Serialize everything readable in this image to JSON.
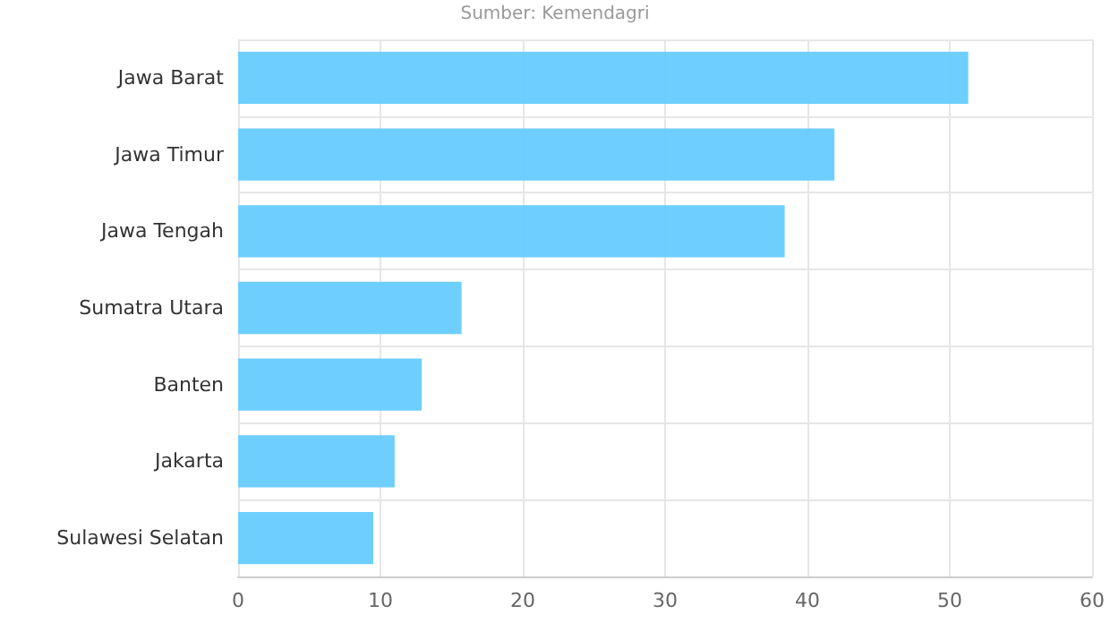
{
  "chart_data": {
    "type": "bar",
    "orientation": "horizontal",
    "annotations": [
      "Sumber: Kemendagri"
    ],
    "categories": [
      "Jawa Barat",
      "Jawa Timur",
      "Jawa Tengah",
      "Sumatra Utara",
      "Banten",
      "Jakarta",
      "Sulawesi Selatan"
    ],
    "values": [
      51.3,
      41.9,
      38.4,
      15.7,
      12.9,
      11.0,
      9.5
    ],
    "color": "#66ccff",
    "xlim": [
      0,
      60
    ],
    "xticks": [
      0,
      10,
      20,
      30,
      40,
      50,
      60
    ],
    "grid": true
  }
}
